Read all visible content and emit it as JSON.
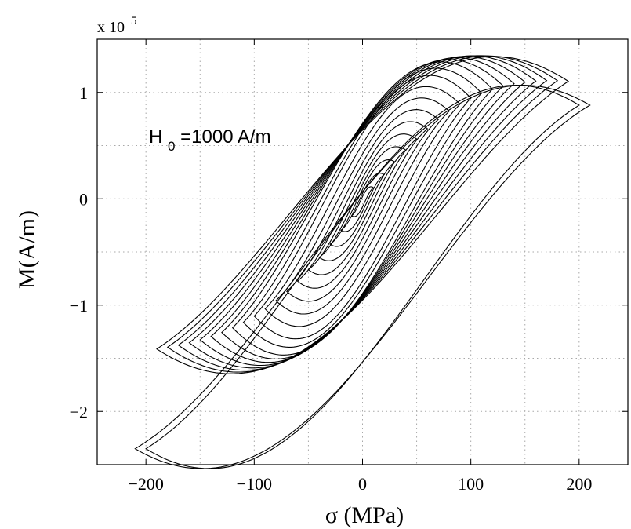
{
  "chart_data": {
    "type": "line",
    "title": "",
    "xlabel": "σ (MPa)",
    "ylabel": "M(A/m)",
    "xlim": [
      -245,
      245
    ],
    "ylim": [
      -2.5,
      1.5
    ],
    "y_multiplier_label": "x 10",
    "y_multiplier_exponent": "5",
    "grid": true,
    "x_ticks": [
      -200,
      -100,
      0,
      100,
      200
    ],
    "x_tick_labels": [
      "−200",
      "−100",
      "0",
      "100",
      "200"
    ],
    "y_ticks": [
      -2,
      -1,
      0,
      1
    ],
    "y_tick_labels": [
      "−2",
      "−1",
      "0",
      "1"
    ],
    "annotation": {
      "main": "H",
      "sub": "0",
      "rest": "=1000 A/m"
    },
    "loop_amplitudes_mpa": [
      10,
      20,
      30,
      40,
      50,
      60,
      70,
      80,
      90,
      100,
      110,
      120,
      130,
      140,
      150,
      160,
      170,
      180,
      190,
      200,
      210
    ],
    "loop_endpoints": {
      "upper_tip_sigma_mpa": 210,
      "upper_tip_m_1e5": 0.88,
      "lower_tip_sigma_mpa": -200,
      "lower_tip_m_1e5": -2.35,
      "max_m_1e5": 1.22,
      "max_m_sigma_mpa": 72
    }
  }
}
